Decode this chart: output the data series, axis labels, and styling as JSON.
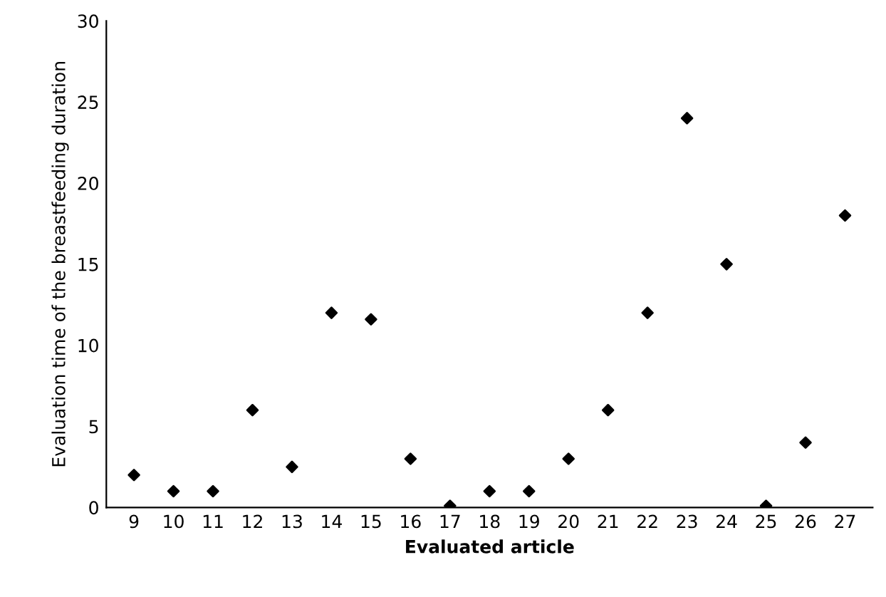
{
  "chart_data": {
    "type": "scatter",
    "xlabel": "Evaluated article",
    "ylabel": "Evaluation time of the breastfeeding duration",
    "categories": [
      "9",
      "10",
      "11",
      "12",
      "13",
      "14",
      "15",
      "16",
      "17",
      "18",
      "19",
      "20",
      "21",
      "22",
      "23",
      "24",
      "25",
      "26",
      "27"
    ],
    "values": [
      2,
      1,
      1,
      6,
      2.5,
      12,
      11.6,
      3,
      0.1,
      1,
      1,
      3,
      6,
      12,
      24,
      15,
      0.1,
      4,
      18
    ],
    "color": "#000000",
    "marker": "diamond",
    "ylim": [
      0,
      30
    ],
    "yticks": [
      0,
      5,
      10,
      15,
      20,
      25,
      30
    ],
    "grid": false,
    "legend": false
  }
}
